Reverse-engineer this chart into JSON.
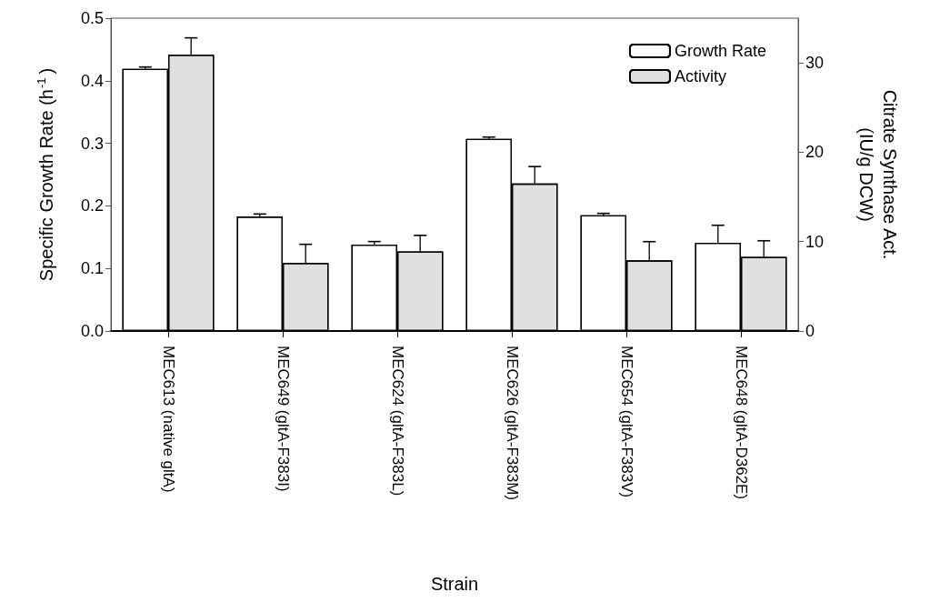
{
  "chart_data": {
    "type": "bar",
    "xlabel": "Strain",
    "ylabel": "Specific Growth Rate (h$^{-1}$)",
    "y2label": "Citrate Synthase Act.\n(IU/g DCW)",
    "categories": [
      "MEC613 (native gltA)",
      "MEC649 (gltA-F383I)",
      "MEC624 (gltA-F383L)",
      "MEC626 (gltA-F383M)",
      "MEC654 (gltA-F383V)",
      "MEC648 (gltA-D362E)"
    ],
    "series": [
      {
        "name": "Growth Rate",
        "color": "#ffffff",
        "values": [
          0.419,
          0.183,
          0.138,
          0.307,
          0.185,
          0.141
        ],
        "errors": [
          0.003,
          0.004,
          0.005,
          0.003,
          0.003,
          0.028
        ]
      },
      {
        "name": "Activity",
        "color": "#e0e0e0",
        "axis": "y2",
        "values": [
          30.9,
          7.6,
          8.9,
          16.5,
          7.9,
          8.3
        ],
        "errors": [
          1.9,
          2.1,
          1.8,
          1.9,
          2.1,
          1.8
        ]
      }
    ],
    "ylim": [
      0,
      0.5
    ],
    "yticks": [
      {
        "value": 0,
        "label": "0.0"
      },
      0.1,
      0.2,
      0.3,
      0.4,
      0.5
    ],
    "y2lim": [
      0,
      35
    ],
    "y2ticks": [
      0,
      10,
      20,
      30
    ],
    "legend": "top right",
    "grid": false
  }
}
